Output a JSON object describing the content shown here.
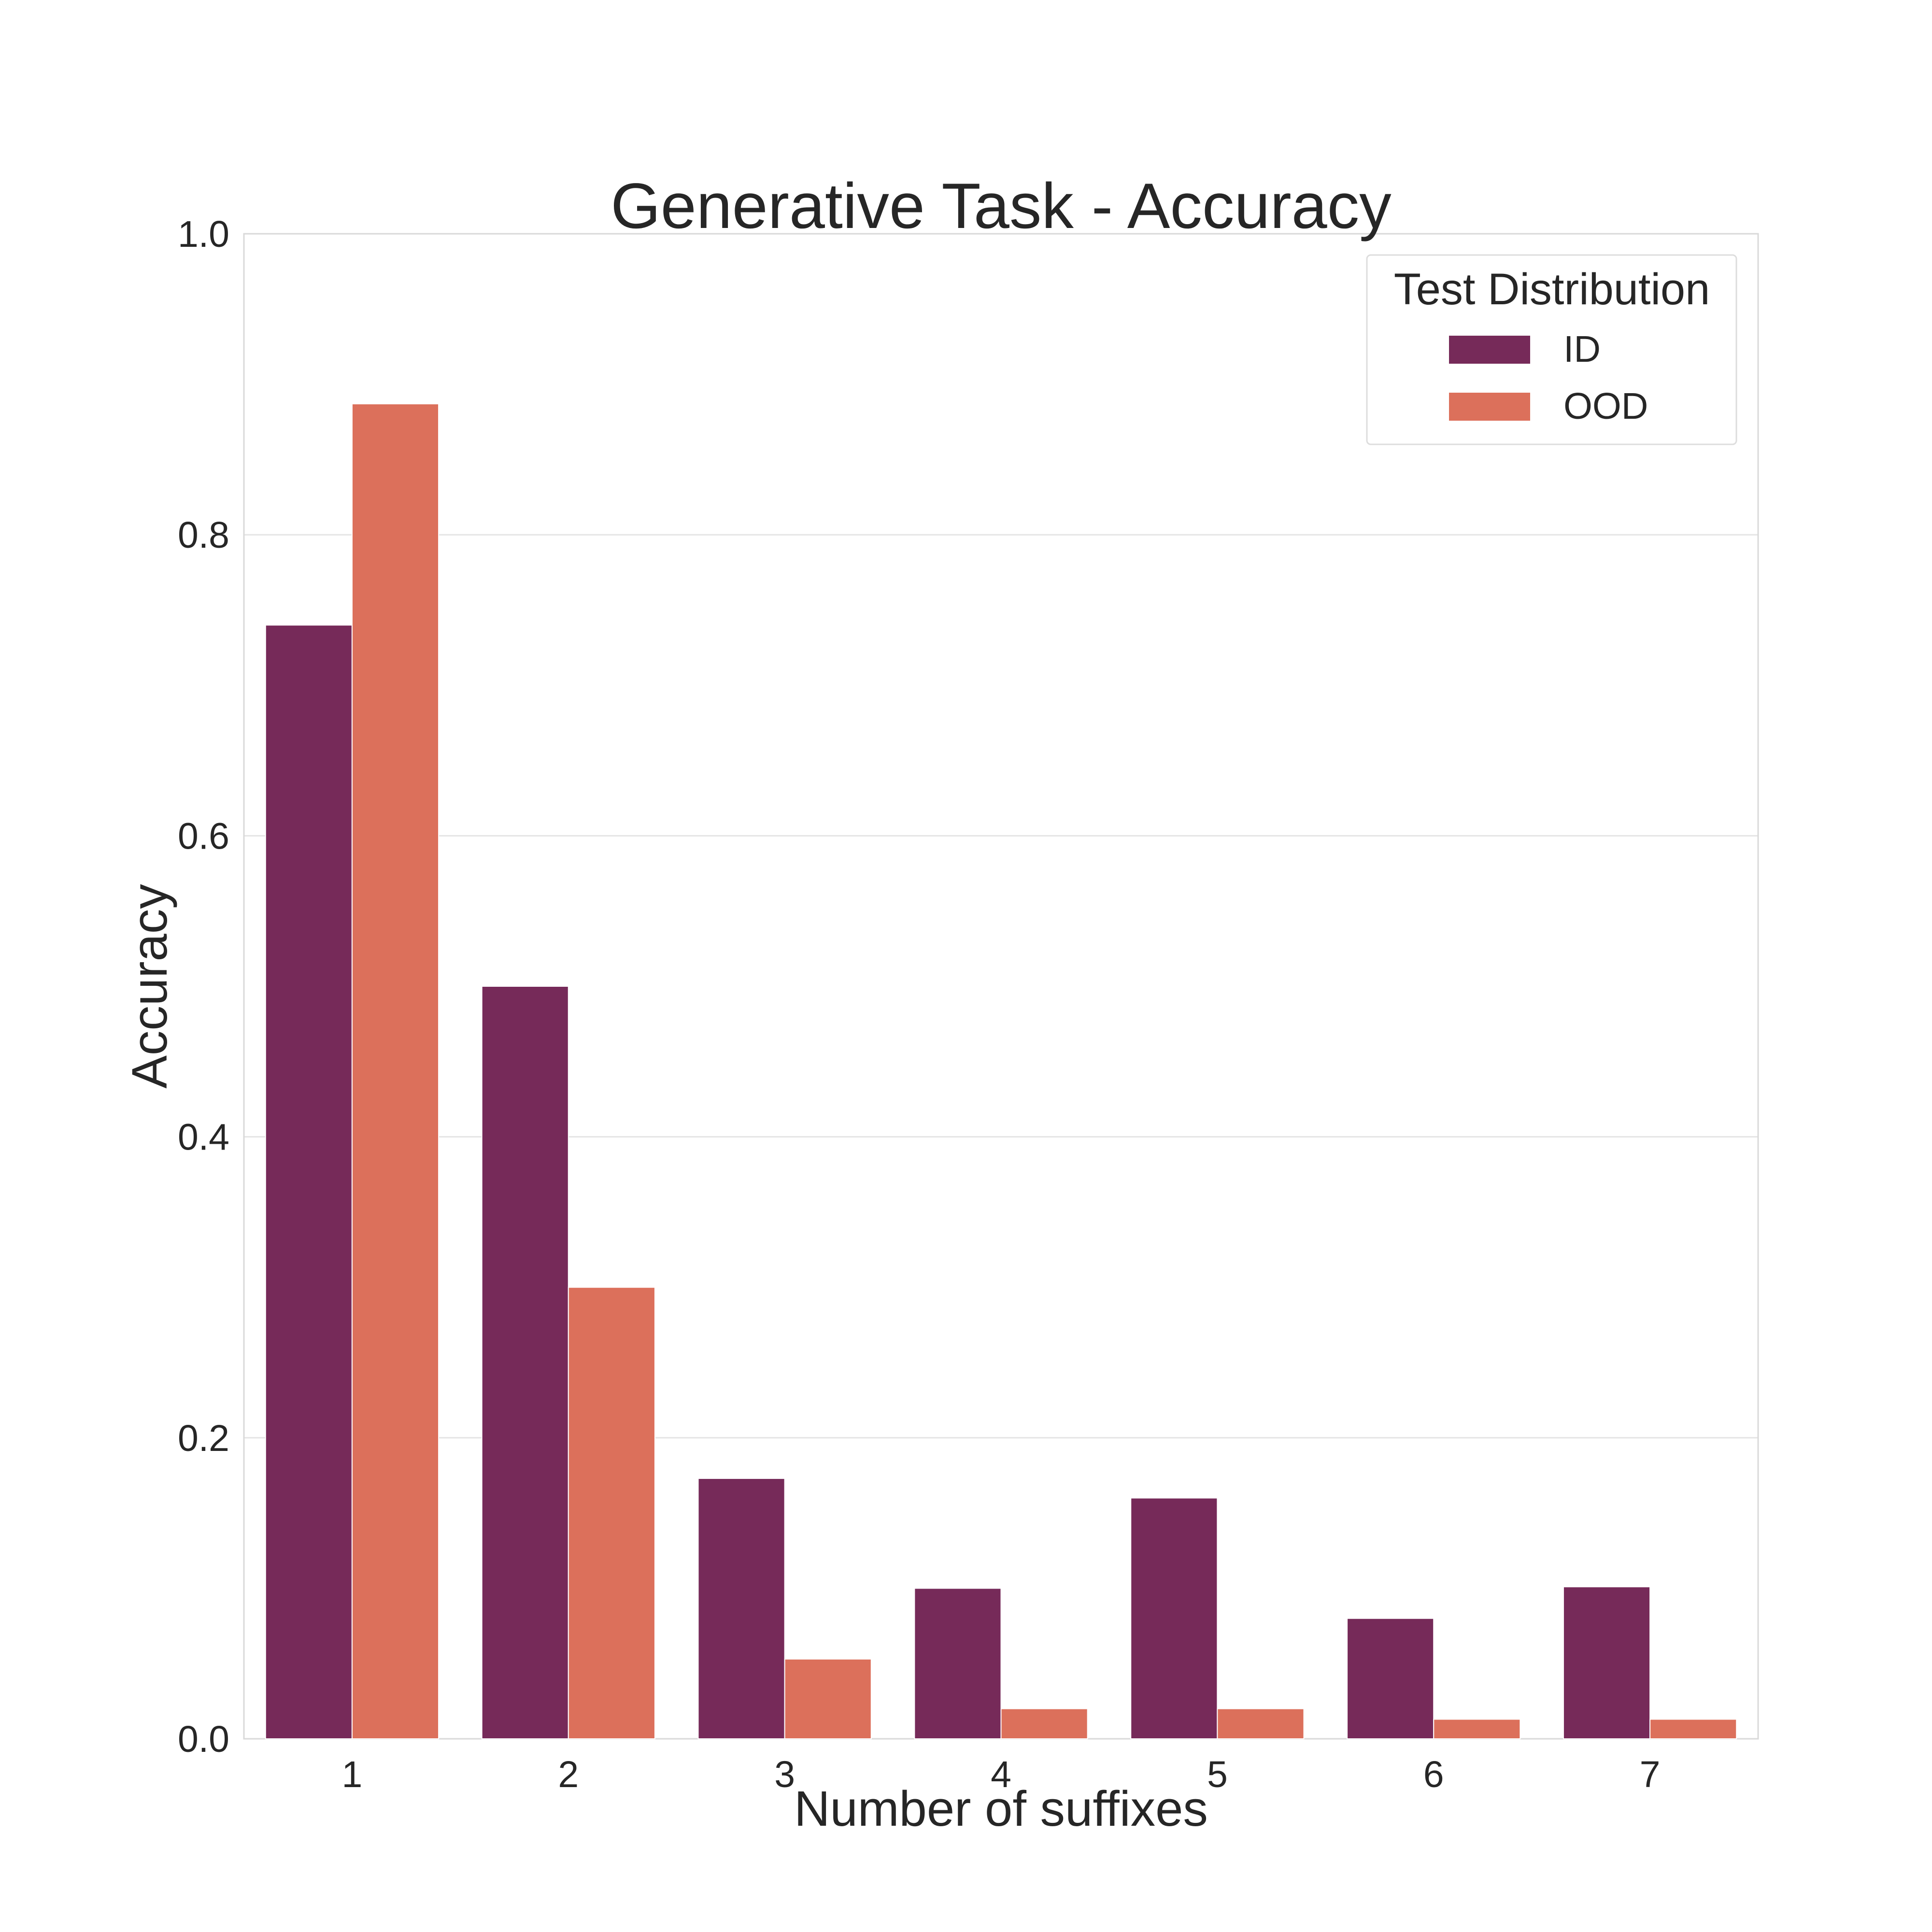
{
  "chart_data": {
    "type": "bar",
    "title": "Generative Task - Accuracy",
    "xlabel": "Number of suffixes",
    "ylabel": "Accuracy",
    "categories": [
      "1",
      "2",
      "3",
      "4",
      "5",
      "6",
      "7"
    ],
    "ylim": [
      0,
      1
    ],
    "yticks": [
      "0.0",
      "0.2",
      "0.4",
      "0.6",
      "0.8",
      "1.0"
    ],
    "grid": "horizontal",
    "legend": {
      "title": "Test Distribution",
      "placement": "top-right"
    },
    "series": [
      {
        "name": "ID",
        "color": "#762a59",
        "values": [
          0.74,
          0.5,
          0.173,
          0.1,
          0.16,
          0.08,
          0.101
        ]
      },
      {
        "name": "OOD",
        "color": "#dc705b",
        "values": [
          0.887,
          0.3,
          0.053,
          0.02,
          0.02,
          0.013,
          0.013
        ]
      }
    ]
  }
}
